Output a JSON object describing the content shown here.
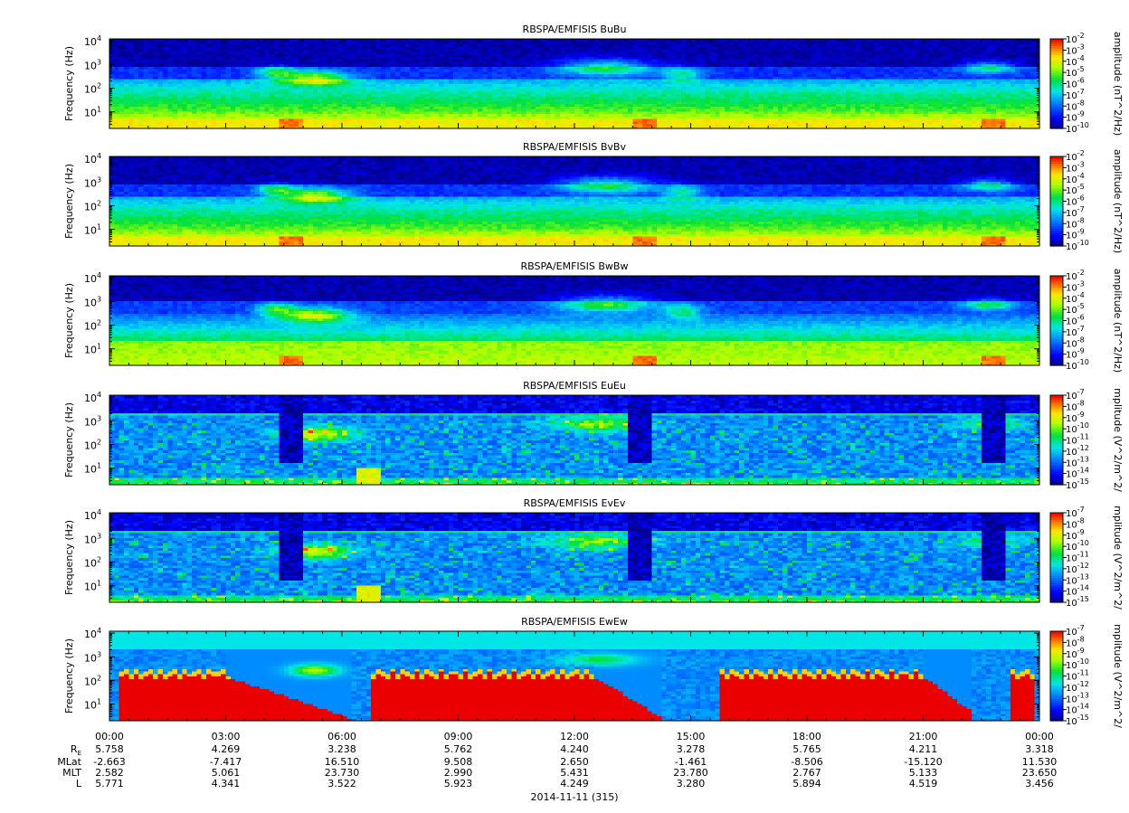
{
  "chart_data": [
    {
      "type": "heatmap",
      "title": "RBSPA/EMFISIS  BuBu",
      "ylabel": "Frequency (Hz)",
      "yscale": "log",
      "ylim": [
        2,
        12000
      ],
      "yticks": [
        [
          "10",
          "1"
        ],
        [
          "10",
          "2"
        ],
        [
          "10",
          "3"
        ],
        [
          "10",
          "4"
        ]
      ],
      "colorbar_label": "amplitude (nT^2/Hz)",
      "colorbar_ticks": [
        [
          "10",
          "-2"
        ],
        [
          "10",
          "-3"
        ],
        [
          "10",
          "-4"
        ],
        [
          "10",
          "-5"
        ],
        [
          "10",
          "-6"
        ],
        [
          "10",
          "-7"
        ],
        [
          "10",
          "-8"
        ],
        [
          "10",
          "-9"
        ],
        [
          "10",
          "-10"
        ]
      ],
      "zlim_exp": [
        -10,
        -2
      ],
      "model": "B"
    },
    {
      "type": "heatmap",
      "title": "RBSPA/EMFISIS  BvBv",
      "ylabel": "Frequency (Hz)",
      "yscale": "log",
      "ylim": [
        2,
        12000
      ],
      "yticks": [
        [
          "10",
          "1"
        ],
        [
          "10",
          "2"
        ],
        [
          "10",
          "3"
        ],
        [
          "10",
          "4"
        ]
      ],
      "colorbar_label": "amplitude (nT^2/Hz)",
      "colorbar_ticks": [
        [
          "10",
          "-2"
        ],
        [
          "10",
          "-3"
        ],
        [
          "10",
          "-4"
        ],
        [
          "10",
          "-5"
        ],
        [
          "10",
          "-6"
        ],
        [
          "10",
          "-7"
        ],
        [
          "10",
          "-8"
        ],
        [
          "10",
          "-9"
        ],
        [
          "10",
          "-10"
        ]
      ],
      "zlim_exp": [
        -10,
        -2
      ],
      "model": "B"
    },
    {
      "type": "heatmap",
      "title": "RBSPA/EMFISIS  BwBw",
      "ylabel": "Frequency (Hz)",
      "yscale": "log",
      "ylim": [
        2,
        12000
      ],
      "yticks": [
        [
          "10",
          "1"
        ],
        [
          "10",
          "2"
        ],
        [
          "10",
          "3"
        ],
        [
          "10",
          "4"
        ]
      ],
      "colorbar_label": "amplitude (nT^2/Hz)",
      "colorbar_ticks": [
        [
          "10",
          "-2"
        ],
        [
          "10",
          "-3"
        ],
        [
          "10",
          "-4"
        ],
        [
          "10",
          "-5"
        ],
        [
          "10",
          "-6"
        ],
        [
          "10",
          "-7"
        ],
        [
          "10",
          "-8"
        ],
        [
          "10",
          "-9"
        ],
        [
          "10",
          "-10"
        ]
      ],
      "zlim_exp": [
        -10,
        -2
      ],
      "model": "Bw"
    },
    {
      "type": "heatmap",
      "title": "RBSPA/EMFISIS  EuEu",
      "ylabel": "Frequency (Hz)",
      "yscale": "log",
      "ylim": [
        2,
        12000
      ],
      "yticks": [
        [
          "10",
          "1"
        ],
        [
          "10",
          "2"
        ],
        [
          "10",
          "3"
        ],
        [
          "10",
          "4"
        ]
      ],
      "colorbar_label": "mplitude (V^2/m^2/",
      "colorbar_ticks": [
        [
          "10",
          "-7"
        ],
        [
          "10",
          "-8"
        ],
        [
          "10",
          "-9"
        ],
        [
          "10",
          "-10"
        ],
        [
          "10",
          "-11"
        ],
        [
          "10",
          "-12"
        ],
        [
          "10",
          "-13"
        ],
        [
          "10",
          "-14"
        ],
        [
          "10",
          "-15"
        ]
      ],
      "zlim_exp": [
        -15,
        -7
      ],
      "model": "E"
    },
    {
      "type": "heatmap",
      "title": "RBSPA/EMFISIS  EvEv",
      "ylabel": "Frequency (Hz)",
      "yscale": "log",
      "ylim": [
        2,
        12000
      ],
      "yticks": [
        [
          "10",
          "1"
        ],
        [
          "10",
          "2"
        ],
        [
          "10",
          "3"
        ],
        [
          "10",
          "4"
        ]
      ],
      "colorbar_label": "mplitude (V^2/m^2/",
      "colorbar_ticks": [
        [
          "10",
          "-7"
        ],
        [
          "10",
          "-8"
        ],
        [
          "10",
          "-9"
        ],
        [
          "10",
          "-10"
        ],
        [
          "10",
          "-11"
        ],
        [
          "10",
          "-12"
        ],
        [
          "10",
          "-13"
        ],
        [
          "10",
          "-14"
        ],
        [
          "10",
          "-15"
        ]
      ],
      "zlim_exp": [
        -15,
        -7
      ],
      "model": "E"
    },
    {
      "type": "heatmap",
      "title": "RBSPA/EMFISIS  EwEw",
      "ylabel": "Frequency (Hz)",
      "yscale": "log",
      "ylim": [
        2,
        12000
      ],
      "yticks": [
        [
          "10",
          "1"
        ],
        [
          "10",
          "2"
        ],
        [
          "10",
          "3"
        ],
        [
          "10",
          "4"
        ]
      ],
      "colorbar_label": "mplitude (V^2/m^2/",
      "colorbar_ticks": [
        [
          "10",
          "-7"
        ],
        [
          "10",
          "-8"
        ],
        [
          "10",
          "-9"
        ],
        [
          "10",
          "-10"
        ],
        [
          "10",
          "-11"
        ],
        [
          "10",
          "-12"
        ],
        [
          "10",
          "-13"
        ],
        [
          "10",
          "-14"
        ],
        [
          "10",
          "-15"
        ]
      ],
      "zlim_exp": [
        -15,
        -7
      ],
      "model": "Ew"
    }
  ],
  "x_axis": {
    "range_hours": [
      0,
      24
    ],
    "tick_labels": [
      "00:00",
      "03:00",
      "06:00",
      "09:00",
      "12:00",
      "15:00",
      "18:00",
      "21:00",
      "00:00"
    ],
    "date_label": "2014-11-11 (315)"
  },
  "ephemeris": {
    "rows": [
      {
        "label": "R",
        "label_sub": "E",
        "values": [
          "5.758",
          "4.269",
          "3.238",
          "5.762",
          "4.240",
          "3.278",
          "5.765",
          "4.211",
          "3.318"
        ]
      },
      {
        "label": "MLat",
        "values": [
          "-2.663",
          "-7.417",
          "16.510",
          "9.508",
          "2.650",
          "-1.461",
          "-8.506",
          "-15.120",
          "11.530"
        ]
      },
      {
        "label": "MLT",
        "values": [
          "2.582",
          "5.061",
          "23.730",
          "2.990",
          "5.431",
          "23.780",
          "2.767",
          "5.133",
          "23.650"
        ]
      },
      {
        "label": "L",
        "values": [
          "5.771",
          "4.341",
          "3.522",
          "5.923",
          "4.249",
          "3.280",
          "5.894",
          "4.519",
          "3.456"
        ]
      }
    ]
  }
}
